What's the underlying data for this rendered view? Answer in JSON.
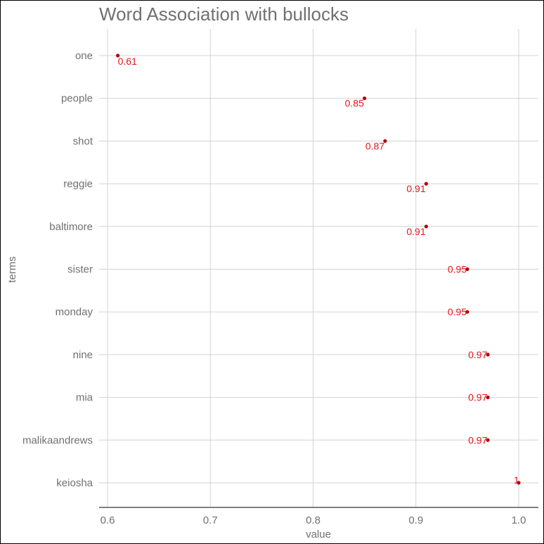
{
  "chart_data": {
    "type": "scatter",
    "title": "Word Association with bullocks",
    "xlabel": "value",
    "ylabel": "terms",
    "xlim": [
      0.59,
      1.02
    ],
    "x_ticks": [
      0.6,
      0.7,
      0.8,
      0.9,
      1.0
    ],
    "x_tick_labels": [
      "0.6",
      "0.7",
      "0.8",
      "0.9",
      "1.0"
    ],
    "grid": true,
    "points": [
      {
        "term": "one",
        "value": 0.61,
        "label": "0.61"
      },
      {
        "term": "people",
        "value": 0.85,
        "label": "0.85"
      },
      {
        "term": "shot",
        "value": 0.87,
        "label": "0.87"
      },
      {
        "term": "reggie",
        "value": 0.91,
        "label": "0.91"
      },
      {
        "term": "baltimore",
        "value": 0.91,
        "label": "0.91"
      },
      {
        "term": "sister",
        "value": 0.95,
        "label": "0.95"
      },
      {
        "term": "monday",
        "value": 0.95,
        "label": "0.95"
      },
      {
        "term": "nine",
        "value": 0.97,
        "label": "0.97"
      },
      {
        "term": "mia",
        "value": 0.97,
        "label": "0.97"
      },
      {
        "term": "malikaandrews",
        "value": 0.97,
        "label": "0.97"
      },
      {
        "term": "keiosha",
        "value": 1.0,
        "label": "1"
      }
    ],
    "colors": {
      "point": "#b30000",
      "label": "#e8141b",
      "text": "#707070",
      "grid": "#d3d3d3"
    }
  }
}
